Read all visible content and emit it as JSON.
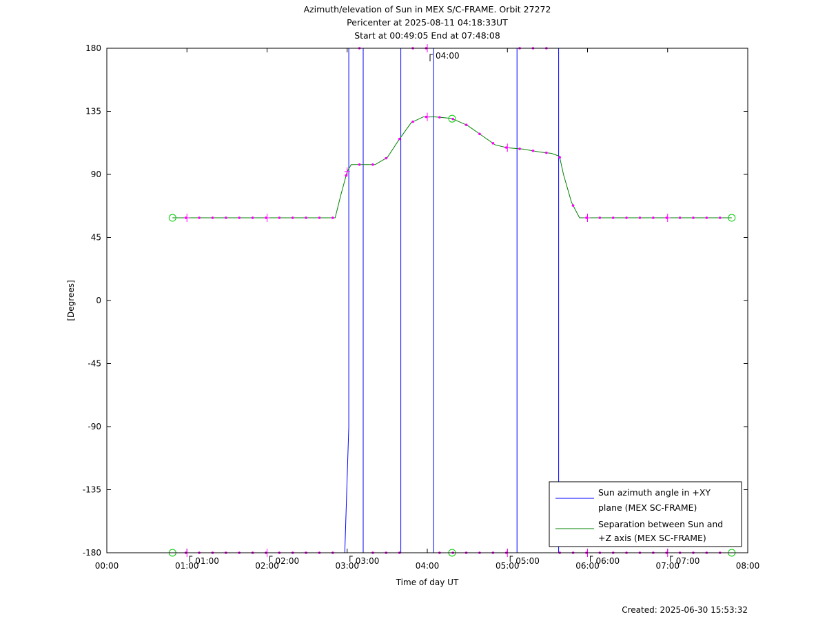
{
  "chart_data": {
    "type": "line",
    "title": [
      "Azimuth/elevation of Sun in MEX S/C-FRAME.  Orbit 27272",
      "Pericenter at 2025-08-11 04:18:33UT",
      "Start at 00:49:05 End at 07:48:08"
    ],
    "xlabel": "Time of day UT",
    "ylabel": "[Degrees]",
    "xlim": [
      0,
      8
    ],
    "ylim": [
      -180,
      180
    ],
    "x_ticks": [
      "00:00",
      "01:00",
      "02:00",
      "03:00",
      "04:00",
      "05:00",
      "06:00",
      "07:00",
      "08:00"
    ],
    "y_ticks": [
      "180",
      "135",
      "90",
      "45",
      "0",
      "-45",
      "-90",
      "-135",
      "-180"
    ],
    "y_tick_values": [
      180,
      135,
      90,
      45,
      0,
      -45,
      -90,
      -135,
      -180
    ],
    "hour_marks": [
      {
        "x": 1.0,
        "label": "01:00",
        "side": "bottom"
      },
      {
        "x": 2.0,
        "label": "02:00",
        "side": "bottom"
      },
      {
        "x": 3.0,
        "label": "03:00",
        "side": "bottom"
      },
      {
        "x": 4.0,
        "label": "04:00",
        "side": "top"
      },
      {
        "x": 5.0,
        "label": "05:00",
        "side": "bottom"
      },
      {
        "x": 6.0,
        "label": "06:00",
        "side": "bottom"
      },
      {
        "x": 7.0,
        "label": "07:00",
        "side": "bottom"
      }
    ],
    "legend_position": "bottom-right",
    "series": [
      {
        "name": "Sun azimuth angle in +XY plane (MEX SC-FRAME)",
        "legend_lines": [
          "Sun azimuth angle in +XY",
          "plane (MEX SC-FRAME)"
        ],
        "color": "#0000ff",
        "x": [
          0.82,
          2.97,
          3.02,
          3.02,
          3.2,
          3.2,
          3.67,
          3.67,
          4.08,
          4.08,
          5.12,
          5.12,
          5.64,
          5.64,
          7.8
        ],
        "y": [
          -180,
          -180,
          -90,
          180,
          180,
          -180,
          -180,
          180,
          180,
          -180,
          -180,
          180,
          180,
          -180,
          -180
        ]
      },
      {
        "name": "Separation between Sun and +Z axis (MEX SC-FRAME)",
        "legend_lines": [
          "Separation between Sun and",
          "+Z axis (MEX SC-FRAME)"
        ],
        "color": "#008000",
        "x": [
          0.82,
          1.0,
          1.5,
          2.0,
          2.5,
          2.85,
          2.92,
          3.0,
          3.05,
          3.2,
          3.35,
          3.5,
          3.65,
          3.8,
          3.95,
          4.1,
          4.3,
          4.5,
          4.7,
          4.85,
          5.0,
          5.2,
          5.4,
          5.55,
          5.65,
          5.7,
          5.8,
          5.9,
          6.0,
          6.5,
          7.0,
          7.5,
          7.8
        ],
        "y": [
          59,
          59,
          59,
          59,
          59,
          59,
          75,
          92,
          97,
          97,
          97,
          102,
          115,
          127,
          131,
          131,
          130,
          125,
          117,
          111,
          109,
          108,
          106,
          105,
          103,
          90,
          70,
          59,
          59,
          59,
          59,
          59,
          59
        ]
      }
    ],
    "marker_color": "#ff00ff",
    "endpoint_marker_color": "#00cc00"
  },
  "footer": {
    "created": "Created: 2025-06-30 15:53:32"
  }
}
